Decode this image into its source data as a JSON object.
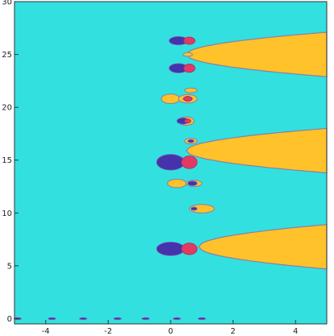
{
  "chart_data": {
    "type": "heatmap",
    "title": "",
    "xlabel": "",
    "ylabel": "",
    "xlim": [
      -5,
      5
    ],
    "ylim": [
      -0.5,
      30
    ],
    "grid": false,
    "legend": "none",
    "x_ticks": [
      {
        "value": -4,
        "label": "-4"
      },
      {
        "value": -2,
        "label": "-2"
      },
      {
        "value": 0,
        "label": "0"
      },
      {
        "value": 2,
        "label": "2"
      },
      {
        "value": 4,
        "label": "4"
      }
    ],
    "y_ticks": [
      {
        "value": 0,
        "label": "0"
      },
      {
        "value": 5,
        "label": "5"
      },
      {
        "value": 10,
        "label": "10"
      },
      {
        "value": 15,
        "label": "15"
      },
      {
        "value": 20,
        "label": "20"
      },
      {
        "value": 25,
        "label": "25"
      },
      {
        "value": 30,
        "label": "30"
      }
    ],
    "colors": {
      "background": "#33e0e0",
      "plume": "#ffc22a",
      "plume_edge": "#8a7fa2",
      "pole": "#4433aa",
      "zero": "#e23a62"
    },
    "regions": {
      "plumes": [
        {
          "y_center": 6.8,
          "x_start": 0.9,
          "half_width_end": 2.1
        },
        {
          "y_center": 15.9,
          "x_start": 0.5,
          "half_width_end": 2.1
        },
        {
          "y_center": 25.0,
          "x_start": 0.5,
          "half_width_end": 2.1
        }
      ],
      "islands": [
        {
          "x": 0.0,
          "y": 20.8,
          "rx": 0.3,
          "ry": 0.45
        },
        {
          "x": 0.55,
          "y": 20.8,
          "rx": 0.3,
          "ry": 0.4
        },
        {
          "x": 0.65,
          "y": 21.6,
          "rx": 0.2,
          "ry": 0.22
        },
        {
          "x": 0.5,
          "y": 18.7,
          "rx": 0.25,
          "ry": 0.4
        },
        {
          "x": 0.2,
          "y": 12.8,
          "rx": 0.3,
          "ry": 0.4
        },
        {
          "x": 0.75,
          "y": 12.8,
          "rx": 0.25,
          "ry": 0.3
        },
        {
          "x": 1.0,
          "y": 10.4,
          "rx": 0.4,
          "ry": 0.4
        },
        {
          "x": 0.55,
          "y": 25.0,
          "rx": 0.15,
          "ry": 0.18
        },
        {
          "x": 0.65,
          "y": 16.8,
          "rx": 0.2,
          "ry": 0.28
        }
      ],
      "poles": [
        {
          "x": 0.0,
          "y": 6.6,
          "rx": 0.45,
          "ry": 0.65
        },
        {
          "x": 0.0,
          "y": 14.8,
          "rx": 0.45,
          "ry": 0.75
        },
        {
          "x": 0.25,
          "y": 23.7,
          "rx": 0.3,
          "ry": 0.45
        },
        {
          "x": 0.25,
          "y": 26.3,
          "rx": 0.3,
          "ry": 0.4
        },
        {
          "x": 0.4,
          "y": 18.7,
          "rx": 0.2,
          "ry": 0.3
        },
        {
          "x": 0.55,
          "y": 20.8,
          "rx": 0.15,
          "ry": 0.22
        },
        {
          "x": 0.7,
          "y": 12.8,
          "rx": 0.15,
          "ry": 0.22
        },
        {
          "x": 0.75,
          "y": 10.4,
          "rx": 0.1,
          "ry": 0.15
        },
        {
          "x": 0.65,
          "y": 16.8,
          "rx": 0.1,
          "ry": 0.15
        },
        {
          "x": -4.9,
          "y": 0.0,
          "rx": 0.12,
          "ry": 0.1
        },
        {
          "x": -3.8,
          "y": 0.0,
          "rx": 0.12,
          "ry": 0.1
        },
        {
          "x": -2.8,
          "y": 0.0,
          "rx": 0.12,
          "ry": 0.1
        },
        {
          "x": -1.7,
          "y": 0.0,
          "rx": 0.12,
          "ry": 0.1
        },
        {
          "x": -0.8,
          "y": 0.0,
          "rx": 0.12,
          "ry": 0.1
        },
        {
          "x": 0.2,
          "y": 0.0,
          "rx": 0.12,
          "ry": 0.1
        },
        {
          "x": 1.0,
          "y": 0.0,
          "rx": 0.12,
          "ry": 0.1
        }
      ],
      "zeros": [
        {
          "x": 0.6,
          "y": 6.6,
          "rx": 0.25,
          "ry": 0.55
        },
        {
          "x": 0.6,
          "y": 14.8,
          "rx": 0.25,
          "ry": 0.6
        },
        {
          "x": 0.6,
          "y": 23.7,
          "rx": 0.18,
          "ry": 0.4
        },
        {
          "x": 0.6,
          "y": 26.3,
          "rx": 0.18,
          "ry": 0.35
        },
        {
          "x": 0.55,
          "y": 20.8,
          "rx": 0.12,
          "ry": 0.25
        },
        {
          "x": 0.55,
          "y": 18.7,
          "rx": 0.1,
          "ry": 0.2
        }
      ]
    }
  }
}
